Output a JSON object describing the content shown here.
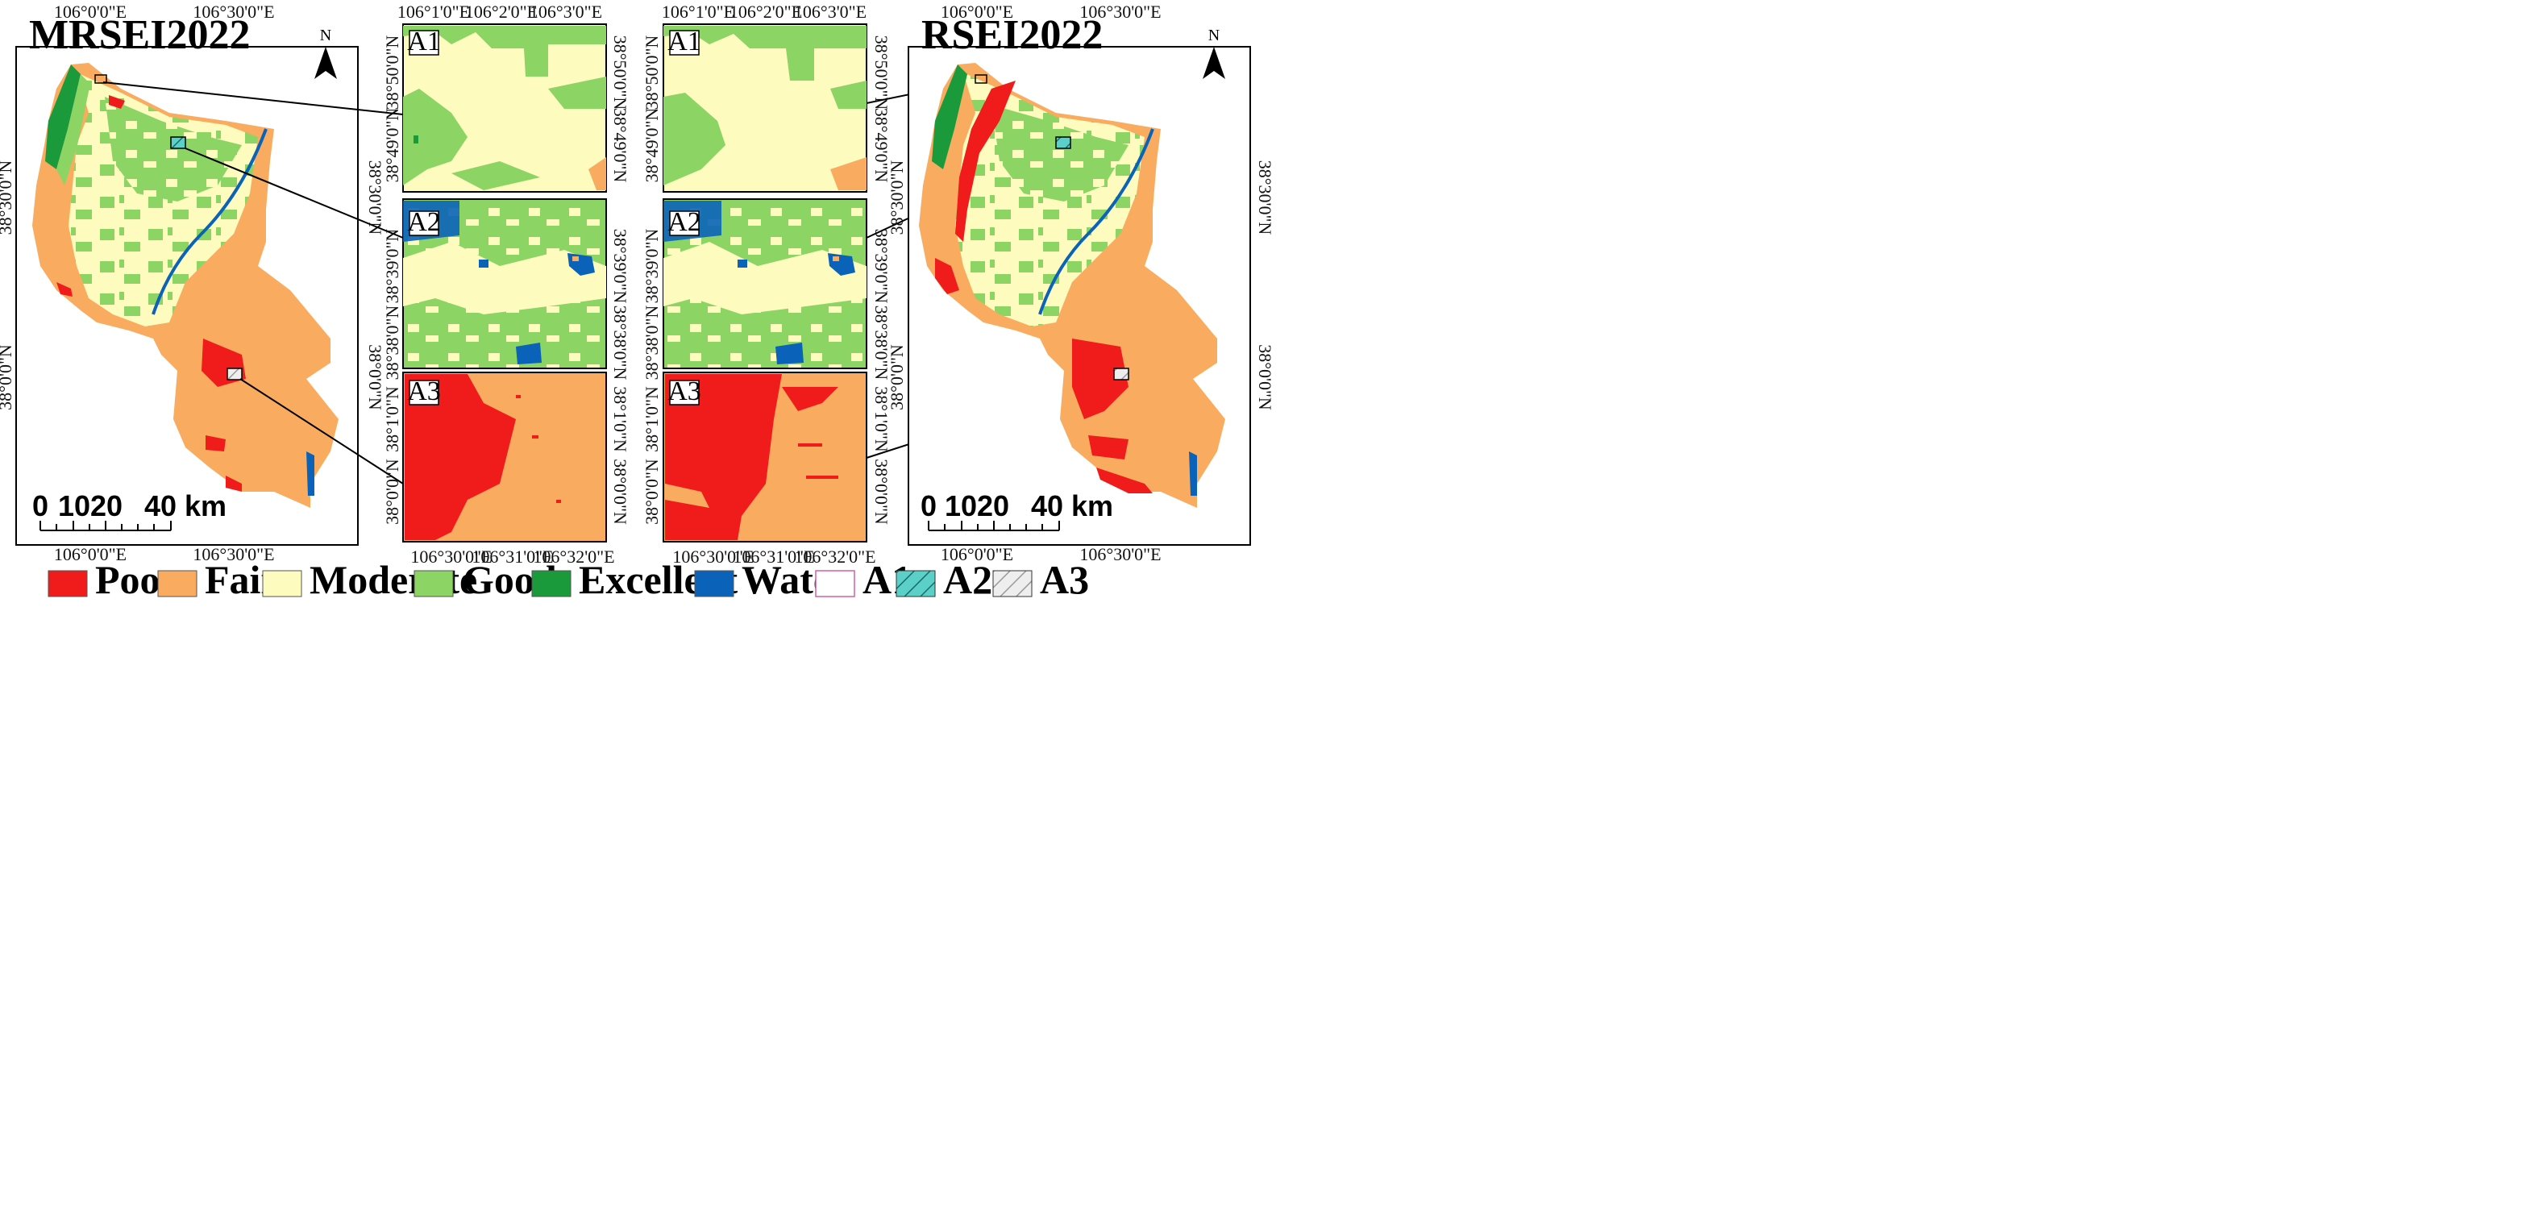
{
  "maps": {
    "left": {
      "title": "MRSEI2022",
      "north": "N"
    },
    "right": {
      "title": "RSEI2022",
      "north": "N"
    }
  },
  "coords": {
    "lon_0": "106°0'0\"E",
    "lon_30": "106°30'0\"E",
    "lat_30": "38°30'0\"N",
    "lat_0": "38°0'0\"N",
    "zoom_top_lon": [
      "106°1'0\"E",
      "106°2'0\"E",
      "106°3'0\"E"
    ],
    "zoom_bottom_lon": [
      "106°30'0\"E",
      "106°31'0\"E",
      "106°32'0\"E"
    ],
    "a1_lat": [
      "38°50'0\"N",
      "38°49'0\"N"
    ],
    "a2_lat": [
      "38°39'0\"N",
      "38°38'0\"N"
    ],
    "a3_lat": [
      "38°1'0\"N",
      "38°0'0\"N"
    ]
  },
  "panels": {
    "a1": "A1",
    "a2": "A2",
    "a3": "A3"
  },
  "scalebar": {
    "ticks": [
      "0",
      "10",
      "20",
      "40 km"
    ]
  },
  "legend": {
    "items": [
      {
        "label": "Poor",
        "color": "#f01c1c"
      },
      {
        "label": "Fair",
        "color": "#f9ac60"
      },
      {
        "label": "Moderate",
        "color": "#fdfbbe"
      },
      {
        "label": "Good",
        "color": "#8cd464"
      },
      {
        "label": "Excellent",
        "color": "#1a9a3a"
      },
      {
        "label": "Water",
        "color": "#0a63b8"
      },
      {
        "label": "A1",
        "color": "#ffffff"
      },
      {
        "label": "A2",
        "color": "#5ad0c8"
      },
      {
        "label": "A3",
        "color": "#d8d8d8"
      }
    ]
  }
}
